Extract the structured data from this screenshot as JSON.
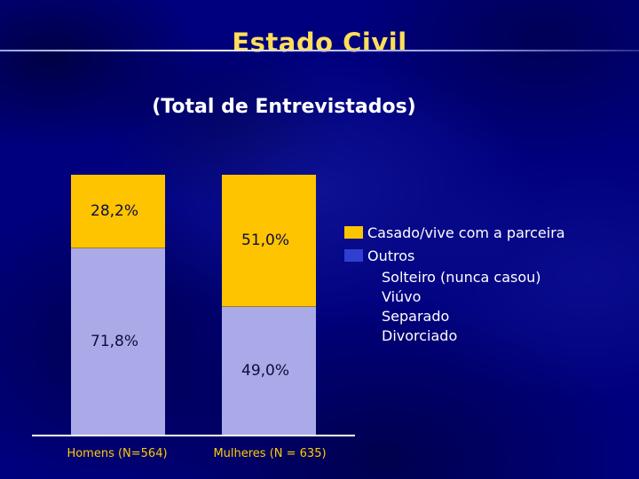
{
  "slide": {
    "title": "Estado Civil",
    "subtitle": "(Total de Entrevistados)"
  },
  "chart_data": {
    "type": "bar",
    "variant": "stacked-column",
    "categories": [
      "Homens (N=564)",
      "Mulheres (N = 635)"
    ],
    "series": [
      {
        "name": "Casado/vive com a parceira",
        "values": [
          28.2,
          51.0
        ],
        "labels": [
          "28,2%",
          "51,0%"
        ],
        "color": "#FFC400"
      },
      {
        "name": "Outros",
        "values": [
          71.8,
          49.0
        ],
        "labels": [
          "71,8%",
          "49,0%"
        ],
        "color": "#AAAAE8"
      }
    ],
    "value_unit": "%",
    "ylim": [
      0,
      100
    ],
    "grid": false,
    "legend_position": "right",
    "title": "Estado Civil",
    "subtitle": "(Total de Entrevistados)"
  },
  "legend": {
    "items": [
      {
        "label": "Casado/vive com a parceira",
        "swatch": "#FFC400"
      },
      {
        "label": "Outros",
        "swatch": "#2F3FD0"
      }
    ],
    "sub_items": [
      "Solteiro (nunca casou)",
      "Viúvo",
      "Separado",
      "Divorciado"
    ]
  },
  "colors": {
    "background": "#00007E",
    "title": "#FFDE5A",
    "subtitle": "#FFFFFF",
    "axis_label": "#FFCC00",
    "data_label": "#0D0D3A",
    "axis_line": "#FFFFFF"
  }
}
